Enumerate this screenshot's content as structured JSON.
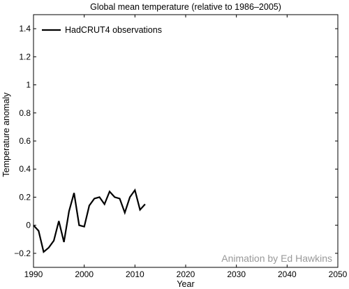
{
  "chart_data": {
    "type": "line",
    "title": "Global mean temperature (relative to 1986–2005)",
    "xlabel": "Year",
    "ylabel": "Temperature anomaly",
    "xlim": [
      1990,
      2050
    ],
    "ylim": [
      -0.3,
      1.5
    ],
    "x_ticks": [
      1990,
      2000,
      2010,
      2020,
      2030,
      2040,
      2050
    ],
    "y_ticks": [
      -0.2,
      0,
      0.2,
      0.4,
      0.6,
      0.8,
      1,
      1.2,
      1.4
    ],
    "x_tick_labels": [
      "1990",
      "2000",
      "2010",
      "2020",
      "2030",
      "2040",
      "2050"
    ],
    "y_tick_labels": [
      "−0.2",
      "0",
      "0.2",
      "0.4",
      "0.6",
      "0.8",
      "1",
      "1.2",
      "1.4"
    ],
    "grid": false,
    "legend_position": "top-left",
    "series": [
      {
        "name": "HadCRUT4 observations",
        "color": "#000000",
        "x": [
          1990,
          1991,
          1992,
          1993,
          1994,
          1995,
          1996,
          1997,
          1998,
          1999,
          2000,
          2001,
          2002,
          2003,
          2004,
          2005,
          2006,
          2007,
          2008,
          2009,
          2010,
          2011,
          2012
        ],
        "y": [
          0.0,
          -0.04,
          -0.19,
          -0.16,
          -0.11,
          0.03,
          -0.12,
          0.1,
          0.23,
          0.0,
          -0.01,
          0.14,
          0.19,
          0.2,
          0.15,
          0.24,
          0.2,
          0.19,
          0.09,
          0.2,
          0.25,
          0.11,
          0.15
        ]
      }
    ]
  },
  "credit": {
    "text": "Animation by Ed Hawkins",
    "color": "#999999"
  }
}
